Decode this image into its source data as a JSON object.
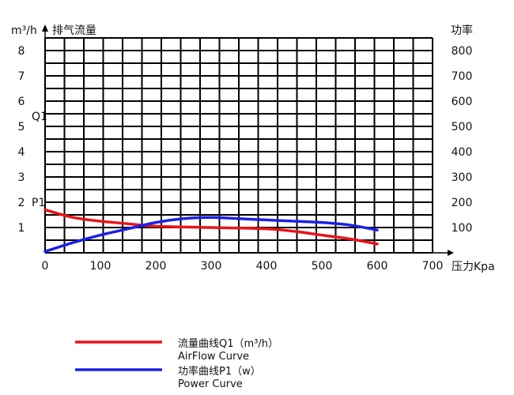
{
  "chart_data": {
    "type": "line",
    "xlabel": "压力Kpa",
    "ylabel_left": "排气流量",
    "ylabel_left_unit": "m³/h",
    "ylabel_right": "功率",
    "xlim": [
      0,
      700
    ],
    "ylim_left": [
      0,
      8.5
    ],
    "ylim_right": [
      0,
      850
    ],
    "x_ticks": [
      "0",
      "100",
      "200",
      "300",
      "400",
      "500",
      "600",
      "700"
    ],
    "y_left_ticks": [
      "1",
      "2",
      "3",
      "4",
      "5",
      "6",
      "7",
      "8"
    ],
    "y_right_ticks": [
      "100",
      "200",
      "300",
      "400",
      "500",
      "600",
      "700",
      "800"
    ],
    "grid": true,
    "annotations": [
      {
        "text": "Q1",
        "y": 5.4
      },
      {
        "text": "P1",
        "y": 2.0
      }
    ],
    "series": [
      {
        "name": "流量曲线Q1（m³/h）",
        "name_en": "AirFlow Curve",
        "axis": "left",
        "color": "#e8141b",
        "x": [
          0,
          50,
          100,
          150,
          200,
          300,
          400,
          450,
          500,
          550,
          600
        ],
        "y": [
          1.7,
          1.4,
          1.25,
          1.15,
          1.05,
          1.0,
          0.95,
          0.85,
          0.7,
          0.55,
          0.35
        ]
      },
      {
        "name": "功率曲线P1（w）",
        "name_en": "Power Curve",
        "axis": "right",
        "color": "#1a22e6",
        "x": [
          0,
          50,
          100,
          150,
          200,
          250,
          300,
          350,
          400,
          450,
          500,
          550,
          600
        ],
        "y": [
          5,
          40,
          70,
          95,
          120,
          135,
          140,
          135,
          130,
          125,
          120,
          110,
          90
        ]
      }
    ]
  }
}
